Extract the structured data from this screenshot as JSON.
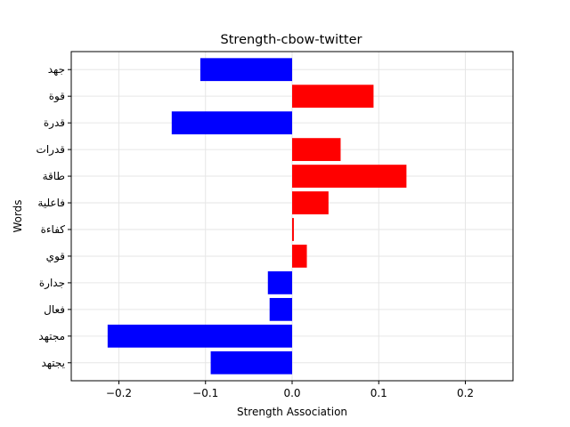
{
  "chart_data": {
    "type": "bar",
    "orientation": "horizontal",
    "title": "Strength-cbow-twitter",
    "xlabel": "Strength Association",
    "ylabel": "Words",
    "xlim": [
      -0.255,
      0.255
    ],
    "xticks": [
      -0.2,
      -0.1,
      0.0,
      0.1,
      0.2
    ],
    "xtick_labels": [
      "−0.2",
      "−0.1",
      "0.0",
      "0.1",
      "0.2"
    ],
    "grid": true,
    "categories": [
      "جهد",
      "قوة",
      "قدرة",
      "قدرات",
      "طاقة",
      "فاعلية",
      "كفاءة",
      "قوي",
      "جدارة",
      "فعال",
      "مجتهد",
      "يجتهد"
    ],
    "values": [
      -0.106,
      0.094,
      -0.139,
      0.056,
      0.132,
      0.042,
      0.002,
      0.017,
      -0.028,
      -0.026,
      -0.213,
      -0.094
    ],
    "colors": {
      "positive": "#ff0000",
      "negative": "#0000ff"
    }
  }
}
